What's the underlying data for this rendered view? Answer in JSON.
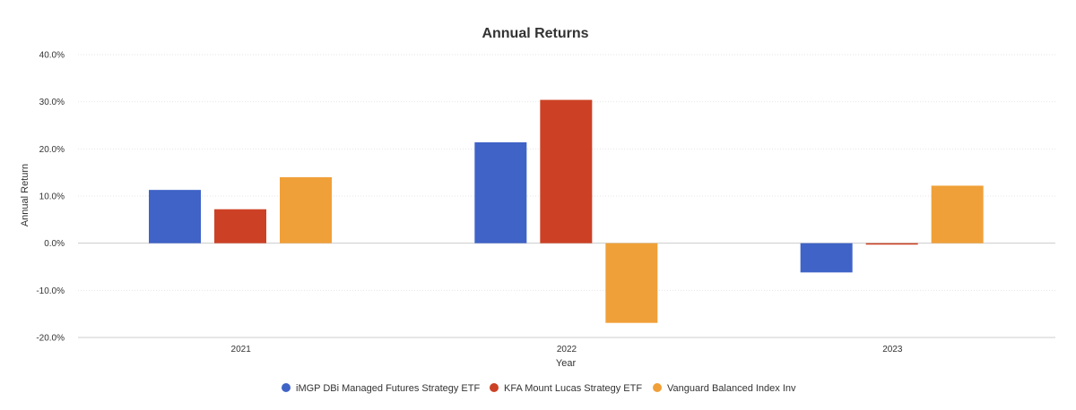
{
  "chart_data": {
    "type": "bar",
    "title": "Annual Returns",
    "xlabel": "Year",
    "ylabel": "Annual Return",
    "categories": [
      "2021",
      "2022",
      "2023"
    ],
    "ylim": [
      -20,
      40
    ],
    "yticks": [
      40,
      30,
      20,
      10,
      0,
      -10,
      -20
    ],
    "ytick_labels": [
      "40.0%",
      "30.0%",
      "20.0%",
      "10.0%",
      "0.0%",
      "-10.0%",
      "-20.0%"
    ],
    "grid": true,
    "legend_position": "bottom",
    "series": [
      {
        "name": "iMGP DBi Managed Futures Strategy ETF",
        "color": "#3f63c7",
        "values": [
          11.3,
          21.4,
          -6.2
        ]
      },
      {
        "name": "KFA Mount Lucas Strategy ETF",
        "color": "#cc4125",
        "values": [
          7.2,
          30.4,
          -0.3
        ]
      },
      {
        "name": "Vanguard Balanced Index Inv",
        "color": "#f0a038",
        "values": [
          14.0,
          -16.9,
          12.2
        ]
      }
    ]
  }
}
